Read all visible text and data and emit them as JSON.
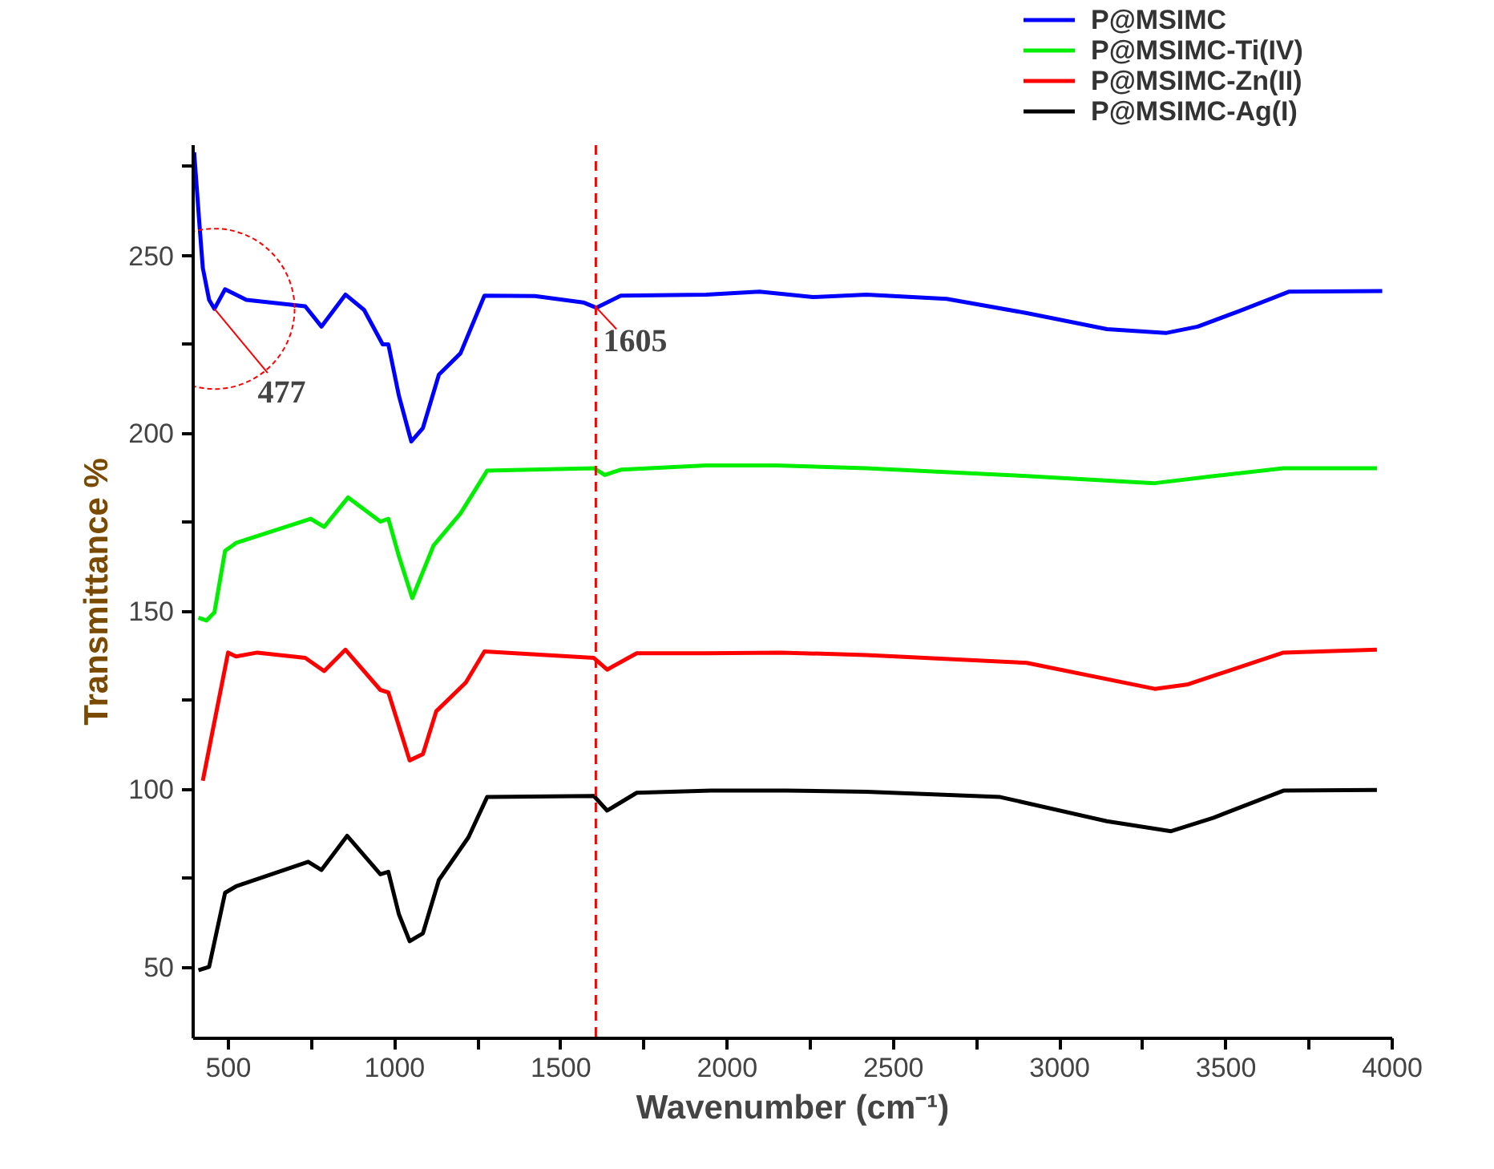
{
  "chart_data": {
    "type": "line",
    "xlabel": "Wavenumber (cm⁻¹)",
    "ylabel": "Transmittance %",
    "xlim": [
      394,
      4000
    ],
    "ylim": [
      30,
      281
    ],
    "xticks": [
      500,
      {
        "value": 750,
        "label": null
      },
      1000,
      {
        "value": 1250,
        "label": null
      },
      1500,
      {
        "value": 1750,
        "label": null
      },
      2000,
      {
        "value": 2250,
        "label": null
      },
      2500,
      {
        "value": 2750,
        "label": null
      },
      3000,
      {
        "value": 3250,
        "label": null
      },
      3500,
      {
        "value": 3750,
        "label": null
      },
      4000
    ],
    "yticks": [
      50,
      {
        "value": 75,
        "label": null
      },
      100,
      {
        "value": 125,
        "label": null
      },
      150,
      {
        "value": 175,
        "label": null
      },
      200,
      {
        "value": 225,
        "label": null
      },
      250,
      {
        "value": 275,
        "label": null
      }
    ],
    "grid": false,
    "legend": "top right",
    "line_style": "solid",
    "marker": "none",
    "ref_lines": [
      {
        "axis": "x",
        "value": 1605,
        "color": "#ff0000",
        "line_style": "dashed"
      }
    ],
    "annotations": [
      {
        "text": "477",
        "x": 458,
        "y": 235
      },
      {
        "text": "1605",
        "x": 1607,
        "y": 235.3
      }
    ],
    "series": [
      {
        "name": "P@MSIMC",
        "color": "#0000ff",
        "x": [
          397,
          413,
          423,
          442,
          458,
          490,
          554,
          731,
          780,
          852,
          908,
          964,
          981,
          1013,
          1050,
          1085,
          1133,
          1198,
          1270,
          1422,
          1567,
          1607,
          1680,
          1937,
          2097,
          2258,
          2419,
          2660,
          2901,
          3142,
          3319,
          3415,
          3544,
          3689,
          3970
        ],
        "values": [
          279,
          258.6,
          246.5,
          237.5,
          235,
          240.5,
          237.5,
          235.7,
          230,
          239,
          234.7,
          225,
          225,
          210.5,
          197.7,
          201.5,
          216.5,
          222.5,
          238.7,
          238.6,
          236.8,
          235.3,
          238.7,
          239,
          239.8,
          238.3,
          239,
          237.8,
          233.8,
          229.3,
          228.2,
          230,
          234.5,
          239.8,
          240
        ]
      },
      {
        "name": "P@MSIMC-Ti(IV)",
        "color": "#00ee00",
        "x": [
          410,
          434,
          458,
          490,
          523,
          747,
          788,
          860,
          957,
          981,
          1013,
          1053,
          1117,
          1198,
          1278,
          1599,
          1632,
          1680,
          1937,
          2146,
          2419,
          2901,
          3286,
          3463,
          3673,
          3954
        ],
        "values": [
          148.2,
          147.4,
          149.7,
          167,
          169.2,
          176,
          173.7,
          182,
          175.2,
          176,
          165.4,
          153.7,
          168.5,
          177.5,
          189.5,
          190.2,
          188.3,
          189.8,
          191,
          191,
          190.2,
          188,
          186,
          188,
          190.2,
          190.2
        ]
      },
      {
        "name": "P@MSIMC-Zn(II)",
        "color": "#ff0000",
        "x": [
          423,
          499,
          523,
          587,
          731,
          788,
          852,
          957,
          981,
          1045,
          1085,
          1125,
          1214,
          1270,
          1599,
          1639,
          1728,
          1937,
          2162,
          2419,
          2901,
          3286,
          3383,
          3673,
          3954
        ],
        "values": [
          102.4,
          138.4,
          137.3,
          138.4,
          136.9,
          133.2,
          139.2,
          127.9,
          127.2,
          108.1,
          109.9,
          121.9,
          130,
          138.7,
          136.9,
          133.6,
          138.2,
          138.2,
          138.4,
          137.7,
          135.5,
          128.2,
          129.4,
          138.4,
          139.2
        ]
      },
      {
        "name": "P@MSIMC-Ag(I)",
        "color": "#000000",
        "x": [
          410,
          442,
          490,
          523,
          740,
          780,
          857,
          957,
          981,
          1013,
          1045,
          1085,
          1133,
          1222,
          1278,
          1599,
          1639,
          1728,
          1953,
          2178,
          2419,
          2821,
          3142,
          3335,
          3463,
          3673,
          3954
        ],
        "values": [
          49.1,
          50.1,
          70.9,
          72.7,
          79.6,
          77.3,
          86.9,
          76.1,
          76.8,
          64.8,
          57.3,
          59.5,
          74.5,
          86.5,
          97.8,
          98.1,
          94,
          99,
          99.6,
          99.6,
          99.3,
          97.8,
          91,
          88.2,
          92,
          99.6,
          99.8
        ]
      }
    ]
  }
}
